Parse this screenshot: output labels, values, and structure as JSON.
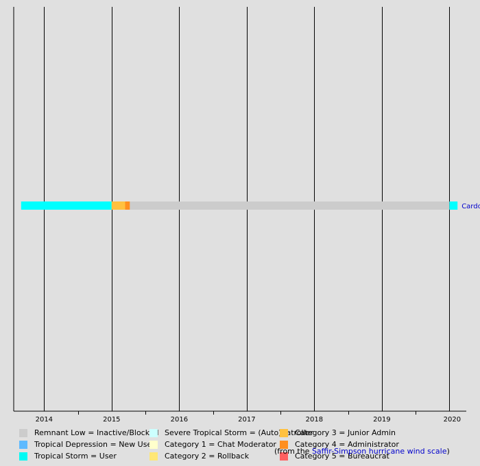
{
  "chart_data": {
    "type": "timeline",
    "title": "",
    "x_axis": {
      "range": [
        2013.55,
        2020.25
      ],
      "tick_labels": [
        "2014",
        "2015",
        "2016",
        "2017",
        "2018",
        "2019",
        "2020"
      ]
    },
    "rows": [
      {
        "label": "Cardo",
        "segments": [
          {
            "start": 2013.66,
            "end": 2015.0,
            "category": "Tropical Storm = User",
            "color": "#00ffff"
          },
          {
            "start": 2015.0,
            "end": 2015.2,
            "category": "Category 3 = Junior Admin",
            "color": "#ffc140"
          },
          {
            "start": 2015.2,
            "end": 2015.27,
            "category": "Category 4 = Administrator",
            "color": "#ff8f20"
          },
          {
            "start": 2015.27,
            "end": 2020.0,
            "category": "Remnant Low = Inactive/Blocked",
            "color": "#cccccc"
          },
          {
            "start": 2020.0,
            "end": 2020.12,
            "category": "Tropical Storm = User",
            "color": "#00ffff"
          }
        ]
      }
    ],
    "legend": [
      {
        "label": "Remnant Low = Inactive/Blocked",
        "color": "#cccccc"
      },
      {
        "label": "Tropical Depression = New User",
        "color": "#5ebaff"
      },
      {
        "label": "Tropical Storm = User",
        "color": "#00faf4"
      },
      {
        "label": "Severe Tropical Storm = (Auto)patroller",
        "color": "#ccffff"
      },
      {
        "label": "Category 1 = Chat Moderator",
        "color": "#ffffcc"
      },
      {
        "label": "Category 2 = Rollback",
        "color": "#ffe775"
      },
      {
        "label": "Category 3 = Junior Admin",
        "color": "#ffc140"
      },
      {
        "label": "Category 4 = Administrator",
        "color": "#ff8f20"
      },
      {
        "label": "Category 5 = Bureaucrat",
        "color": "#ff6060"
      }
    ],
    "legend_note": {
      "prefix": "(from the ",
      "link": "Saffir-Simpson hurricane wind scale",
      "suffix": ")"
    }
  }
}
